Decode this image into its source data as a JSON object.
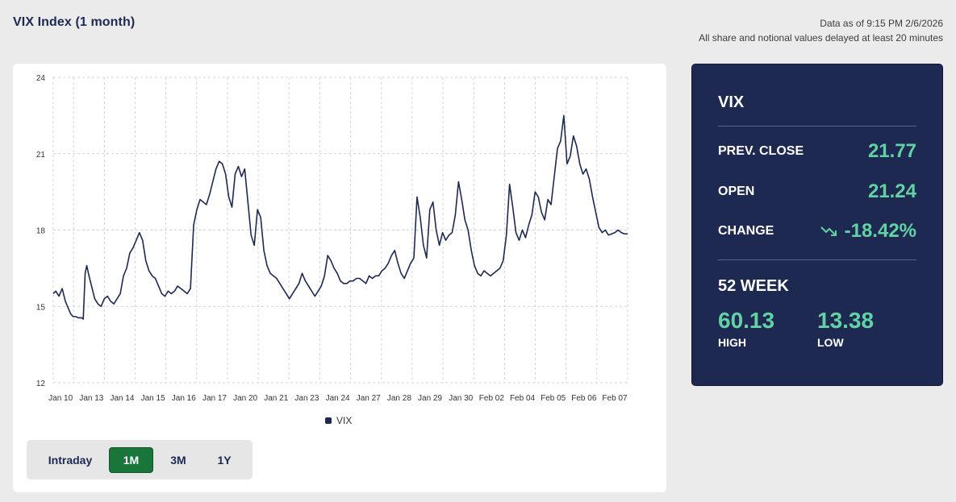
{
  "header": {
    "title": "VIX Index (1 month)",
    "data_as_of": "Data as of 9:15 PM 2/6/2026",
    "delay_note": "All share and notional values delayed at least 20 minutes"
  },
  "chart_data": {
    "type": "line",
    "title": "VIX Index (1 month)",
    "ylim": [
      12,
      24
    ],
    "yticks": [
      12,
      15,
      18,
      21,
      24
    ],
    "grid": true,
    "legend_position": "bottom-center",
    "categories": [
      "Jan 10",
      "Jan 13",
      "Jan 14",
      "Jan 15",
      "Jan 16",
      "Jan 17",
      "Jan 20",
      "Jan 21",
      "Jan 23",
      "Jan 24",
      "Jan 27",
      "Jan 28",
      "Jan 29",
      "Jan 30",
      "Feb 02",
      "Feb 04",
      "Feb 05",
      "Feb 06",
      "Feb 07"
    ],
    "series": [
      {
        "name": "VIX",
        "color": "#1d2951",
        "x": [
          0,
          0.08,
          0.18,
          0.28,
          0.38,
          0.48,
          0.55,
          0.62,
          0.7,
          0.8,
          0.9,
          0.94,
          1,
          1.05,
          1.12,
          1.2,
          1.3,
          1.4,
          1.5,
          1.6,
          1.7,
          1.8,
          1.9,
          2,
          2.1,
          2.2,
          2.3,
          2.4,
          2.5,
          2.6,
          2.7,
          2.8,
          2.9,
          3,
          3.1,
          3.2,
          3.3,
          3.4,
          3.5,
          3.6,
          3.7,
          3.8,
          3.9,
          4,
          4.1,
          4.2,
          4.3,
          4.4,
          4.5,
          4.6,
          4.7,
          4.8,
          4.9,
          5,
          5.1,
          5.2,
          5.3,
          5.4,
          5.5,
          5.6,
          5.7,
          5.8,
          5.9,
          6,
          6.1,
          6.2,
          6.3,
          6.4,
          6.5,
          6.6,
          6.7,
          6.8,
          6.9,
          7,
          7.1,
          7.2,
          7.3,
          7.4,
          7.5,
          7.6,
          7.7,
          7.8,
          7.9,
          8,
          8.1,
          8.2,
          8.3,
          8.4,
          8.5,
          8.6,
          8.7,
          8.8,
          8.9,
          9,
          9.1,
          9.2,
          9.3,
          9.4,
          9.5,
          9.6,
          9.7,
          9.8,
          9.9,
          10,
          10.1,
          10.2,
          10.3,
          10.4,
          10.5,
          10.6,
          10.7,
          10.8,
          10.9,
          11,
          11.1,
          11.2,
          11.3,
          11.4,
          11.5,
          11.6,
          11.7,
          11.8,
          11.9,
          12,
          12.1,
          12.2,
          12.3,
          12.4,
          12.5,
          12.6,
          12.7,
          12.8,
          12.9,
          13,
          13.1,
          13.2,
          13.3,
          13.4,
          13.5,
          13.6,
          13.7,
          13.8,
          13.9,
          14,
          14.1,
          14.2,
          14.3,
          14.4,
          14.5,
          14.6,
          14.7,
          14.8,
          14.9,
          15,
          15.1,
          15.2,
          15.3,
          15.4,
          15.5,
          15.6,
          15.7,
          15.8,
          15.9,
          16,
          16.1,
          16.2,
          16.3,
          16.4,
          16.5,
          16.6,
          16.7,
          16.8,
          16.9,
          17,
          17.1,
          17.2,
          17.3,
          17.4,
          17.5,
          17.6,
          17.7,
          17.8,
          17.9,
          18
        ],
        "y": [
          15.5,
          15.6,
          15.4,
          15.7,
          15.2,
          14.9,
          14.7,
          14.6,
          14.6,
          14.55,
          14.55,
          14.5,
          16.3,
          16.6,
          16.2,
          15.8,
          15.3,
          15.1,
          15.0,
          15.3,
          15.4,
          15.2,
          15.1,
          15.3,
          15.5,
          16.2,
          16.5,
          17.1,
          17.3,
          17.6,
          17.9,
          17.6,
          16.8,
          16.4,
          16.2,
          16.1,
          15.8,
          15.5,
          15.4,
          15.6,
          15.5,
          15.6,
          15.8,
          15.7,
          15.6,
          15.5,
          15.7,
          18.2,
          18.8,
          19.2,
          19.1,
          19.0,
          19.4,
          19.9,
          20.4,
          20.7,
          20.6,
          20.2,
          19.3,
          18.9,
          20.2,
          20.5,
          20.1,
          20.4,
          19.1,
          17.8,
          17.4,
          18.8,
          18.5,
          17.2,
          16.6,
          16.3,
          16.2,
          16.1,
          15.9,
          15.7,
          15.5,
          15.3,
          15.5,
          15.7,
          15.9,
          16.3,
          16.0,
          15.8,
          15.6,
          15.4,
          15.6,
          15.8,
          16.2,
          17.0,
          16.8,
          16.5,
          16.3,
          16.0,
          15.9,
          15.9,
          16.0,
          16.0,
          16.1,
          16.1,
          16.0,
          15.9,
          16.2,
          16.1,
          16.2,
          16.2,
          16.4,
          16.5,
          16.7,
          17.0,
          17.2,
          16.7,
          16.3,
          16.1,
          16.4,
          16.7,
          16.9,
          19.3,
          18.5,
          17.4,
          16.9,
          18.8,
          19.1,
          18.0,
          17.4,
          17.9,
          17.6,
          17.8,
          17.9,
          18.6,
          19.9,
          19.2,
          18.4,
          18.0,
          17.2,
          16.6,
          16.3,
          16.2,
          16.4,
          16.3,
          16.2,
          16.3,
          16.4,
          16.5,
          16.8,
          17.8,
          19.8,
          18.9,
          17.9,
          17.6,
          18.0,
          17.7,
          18.2,
          18.6,
          19.5,
          19.3,
          18.7,
          18.4,
          19.2,
          19.0,
          20.1,
          21.2,
          21.5,
          22.5,
          20.6,
          20.9,
          21.7,
          21.3,
          20.6,
          20.2,
          20.4,
          20.0,
          19.3,
          18.7,
          18.1,
          17.9,
          18.0,
          17.8,
          17.85,
          17.9,
          18.0,
          17.9,
          17.85,
          17.85
        ]
      }
    ]
  },
  "range_selector": {
    "buttons": [
      "Intraday",
      "1M",
      "3M",
      "1Y"
    ],
    "active": "1M"
  },
  "stats": {
    "symbol": "VIX",
    "prev_close_label": "PREV. CLOSE",
    "prev_close_value": "21.77",
    "open_label": "OPEN",
    "open_value": "21.24",
    "change_label": "CHANGE",
    "change_value": "-18.42%",
    "week52_title": "52 WEEK",
    "high_value": "60.13",
    "high_label": "HIGH",
    "low_value": "13.38",
    "low_label": "LOW"
  },
  "colors": {
    "navy": "#1d2951",
    "accent_green": "#62d2a5",
    "button_green": "#19753a"
  }
}
